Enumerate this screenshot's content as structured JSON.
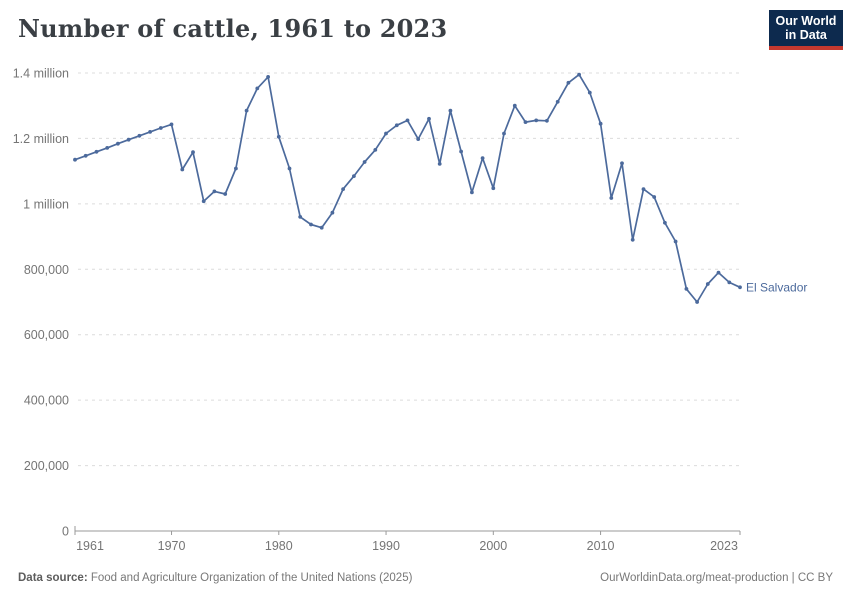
{
  "header": {
    "title": "Number of cattle, 1961 to 2023"
  },
  "logo": {
    "line1": "Our World",
    "line2": "in Data",
    "bg_color": "#0d2a4e",
    "accent_color": "#c5392f"
  },
  "entity_label": "El Salvador",
  "colors": {
    "line": "#4c6a9c",
    "grid": "#dcdcdc",
    "axis": "#9a9a9a",
    "tick_text": "#757575"
  },
  "chart_data": {
    "type": "line",
    "title": "Number of cattle, 1961 to 2023",
    "xlabel": "",
    "ylabel": "",
    "xlim": [
      1961,
      2023
    ],
    "ylim": [
      0,
      1400000
    ],
    "grid": "horizontal-dashed",
    "legend_position": "end-of-line-label",
    "yticks": [
      {
        "value": 0,
        "label": "0"
      },
      {
        "value": 200000,
        "label": "200,000"
      },
      {
        "value": 400000,
        "label": "400,000"
      },
      {
        "value": 600000,
        "label": "600,000"
      },
      {
        "value": 800000,
        "label": "800,000"
      },
      {
        "value": 1000000,
        "label": "1 million"
      },
      {
        "value": 1200000,
        "label": "1.2 million"
      },
      {
        "value": 1400000,
        "label": "1.4 million"
      }
    ],
    "xticks": [
      {
        "value": 1961,
        "label": "1961"
      },
      {
        "value": 1970,
        "label": "1970"
      },
      {
        "value": 1980,
        "label": "1980"
      },
      {
        "value": 1990,
        "label": "1990"
      },
      {
        "value": 2000,
        "label": "2000"
      },
      {
        "value": 2010,
        "label": "2010"
      },
      {
        "value": 2023,
        "label": "2023"
      }
    ],
    "series": [
      {
        "name": "El Salvador",
        "color": "#4c6a9c",
        "x": [
          1961,
          1962,
          1963,
          1964,
          1965,
          1966,
          1967,
          1968,
          1969,
          1970,
          1971,
          1972,
          1973,
          1974,
          1975,
          1976,
          1977,
          1978,
          1979,
          1980,
          1981,
          1982,
          1983,
          1984,
          1985,
          1986,
          1987,
          1988,
          1989,
          1990,
          1991,
          1992,
          1993,
          1994,
          1995,
          1996,
          1997,
          1998,
          1999,
          2000,
          2001,
          2002,
          2003,
          2004,
          2005,
          2006,
          2007,
          2008,
          2009,
          2010,
          2011,
          2012,
          2013,
          2014,
          2015,
          2016,
          2017,
          2018,
          2019,
          2020,
          2021,
          2022,
          2023
        ],
        "values": [
          1135000,
          1147000,
          1159000,
          1171000,
          1184000,
          1196000,
          1208000,
          1220000,
          1232000,
          1243000,
          1105000,
          1158000,
          1008000,
          1038000,
          1030000,
          1108000,
          1285000,
          1353000,
          1388000,
          1205000,
          1108000,
          960000,
          937000,
          927000,
          973000,
          1045000,
          1085000,
          1128000,
          1165000,
          1215000,
          1240000,
          1255000,
          1198000,
          1260000,
          1122000,
          1285000,
          1160000,
          1035000,
          1140000,
          1048000,
          1215000,
          1300000,
          1250000,
          1255000,
          1254000,
          1312000,
          1370000,
          1395000,
          1340000,
          1245000,
          1018000,
          1124000,
          890000,
          1045000,
          1021000,
          942000,
          885000,
          740000,
          700000,
          755000,
          790000,
          760000,
          745000
        ]
      }
    ]
  },
  "footer": {
    "source_label": "Data source:",
    "source_text": " Food and Agriculture Organization of the United Nations (2025)",
    "link_text": "OurWorldinData.org/meat-production | CC BY"
  }
}
